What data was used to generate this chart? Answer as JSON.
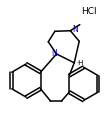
{
  "background_color": "#ffffff",
  "line_color": "#000000",
  "nitrogen_color": "#0000bb",
  "lw": 1.1,
  "figsize": [
    1.12,
    1.4
  ],
  "dpi": 100,
  "xlim": [
    0,
    10
  ],
  "ylim": [
    0,
    12.5
  ],
  "hcl_x": 8.0,
  "hcl_y": 11.5,
  "hcl_fontsize": 6.5
}
